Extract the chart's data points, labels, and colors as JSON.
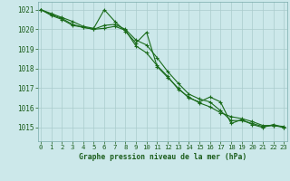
{
  "bg_color": "#cce8ea",
  "grid_color": "#aacccc",
  "line_color": "#1a6b1a",
  "marker_color": "#1a6b1a",
  "xlabel": "Graphe pression niveau de la mer (hPa)",
  "xlabel_color": "#1a5c1a",
  "tick_color": "#1a5c1a",
  "ylim": [
    1014.3,
    1021.4
  ],
  "yticks": [
    1015,
    1016,
    1017,
    1018,
    1019,
    1020,
    1021
  ],
  "xticks": [
    0,
    1,
    2,
    3,
    4,
    5,
    6,
    7,
    8,
    9,
    10,
    11,
    12,
    13,
    14,
    15,
    16,
    17,
    18,
    19,
    20,
    21,
    22,
    23
  ],
  "series": {
    "line1": [
      1021.0,
      1020.8,
      1020.6,
      1020.4,
      1020.15,
      1020.05,
      1021.0,
      1020.4,
      1019.9,
      1019.3,
      1019.85,
      1018.1,
      1017.55,
      1017.0,
      1016.5,
      1016.3,
      1016.55,
      1016.3,
      1015.2,
      1015.4,
      1015.15,
      1015.0,
      1015.15,
      1015.0
    ],
    "line2": [
      1021.0,
      1020.75,
      1020.55,
      1020.25,
      1020.1,
      1020.0,
      1020.2,
      1020.25,
      1020.0,
      1019.45,
      1019.2,
      1018.55,
      1017.85,
      1017.25,
      1016.7,
      1016.45,
      1016.3,
      1015.85,
      1015.35,
      1015.35,
      1015.2,
      1015.05,
      1015.1,
      1015.05
    ],
    "line3": [
      1021.0,
      1020.7,
      1020.5,
      1020.2,
      1020.1,
      1020.0,
      1020.05,
      1020.15,
      1019.95,
      1019.15,
      1018.8,
      1018.15,
      1017.6,
      1016.95,
      1016.55,
      1016.25,
      1016.05,
      1015.75,
      1015.55,
      1015.45,
      1015.3,
      1015.1,
      1015.1,
      1015.0
    ]
  }
}
